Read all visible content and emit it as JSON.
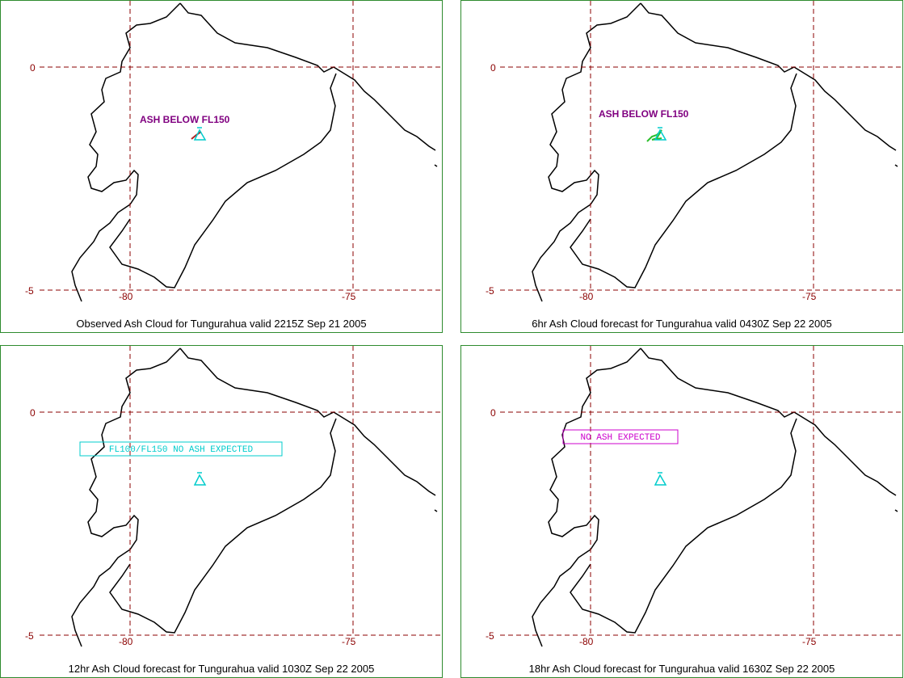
{
  "panels": [
    {
      "caption": "Observed Ash Cloud for Tungurahua valid 2215Z Sep 21 2005",
      "annotation": {
        "style": "plain",
        "text": "ASH BELOW FL150",
        "color": "#800080"
      },
      "plume_color": "#b22222"
    },
    {
      "caption": "6hr Ash Cloud forecast for Tungurahua valid 0430Z Sep 22 2005",
      "annotation": {
        "style": "plain",
        "text": "ASH BELOW FL150",
        "color": "#800080"
      },
      "plume_color": "#2cbf2c"
    },
    {
      "caption": "12hr Ash Cloud forecast for Tungurahua valid 1030Z Sep 22 2005",
      "annotation": {
        "style": "box",
        "text": "FL100/FL150 NO ASH EXPECTED",
        "color": "#00cccc"
      },
      "plume_color": null
    },
    {
      "caption": "18hr Ash Cloud forecast for Tungurahua valid 1630Z Sep 22 2005",
      "annotation": {
        "style": "box",
        "text": "NO ASH EXPECTED",
        "color": "#cc00cc"
      },
      "plume_color": null
    }
  ],
  "grid_labels": {
    "lat_top": "0",
    "lat_bottom": "-5",
    "lon_left": "-80",
    "lon_right": "-75"
  },
  "colors": {
    "frame": "#2e8b2e",
    "grid": "#8b0000",
    "coast": "#000000",
    "volcano": "#00cccc"
  },
  "icons": {
    "volcano": "volcano-triangle-icon"
  }
}
